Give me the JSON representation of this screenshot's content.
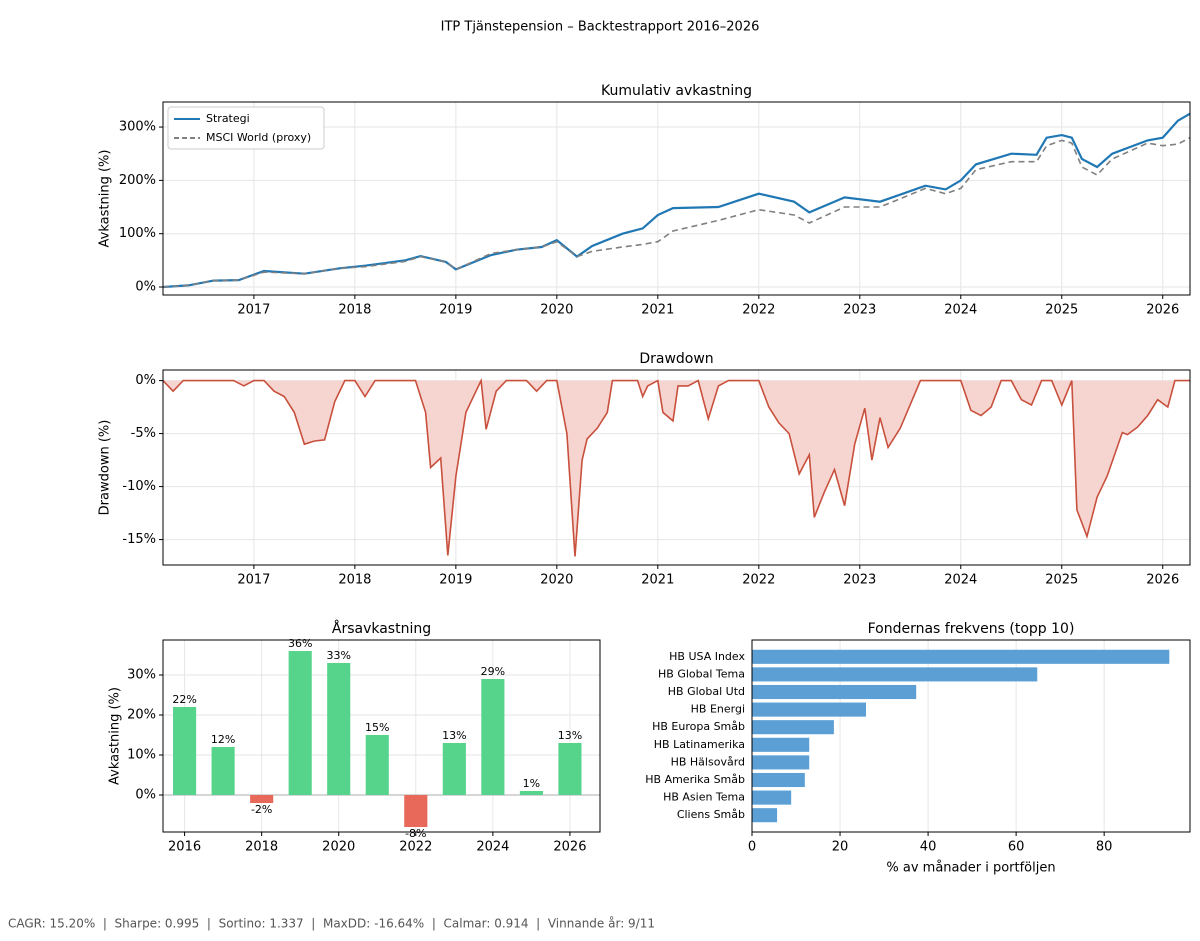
{
  "title": "ITP Tjänstepension – Backtestrapport 2016–2026",
  "footer": "CAGR: 15.20%  |  Sharpe: 0.995  |  Sortino: 1.337  |  MaxDD: -16.64%  |  Calmar: 0.914  |  Vinnande år: 9/11",
  "chart_data": [
    {
      "type": "line",
      "title": "Kumulativ avkastning",
      "y_label": "Avkastning (%)",
      "x": [
        2016.1,
        2016.35,
        2016.6,
        2016.85,
        2017.1,
        2017.5,
        2017.85,
        2018.1,
        2018.5,
        2018.65,
        2018.9,
        2019.0,
        2019.35,
        2019.6,
        2019.85,
        2020.0,
        2020.2,
        2020.35,
        2020.65,
        2020.85,
        2021.0,
        2021.15,
        2021.6,
        2022.0,
        2022.35,
        2022.5,
        2022.85,
        2023.2,
        2023.65,
        2023.85,
        2024.0,
        2024.15,
        2024.5,
        2024.75,
        2024.85,
        2025.0,
        2025.1,
        2025.2,
        2025.35,
        2025.5,
        2025.85,
        2026.0,
        2026.15,
        2026.27
      ],
      "series": [
        {
          "name": "Strategi",
          "color": "#1f77b4",
          "linestyle": "solid",
          "values": [
            0,
            3,
            12,
            13,
            30,
            25,
            35,
            40,
            50,
            58,
            47,
            33,
            60,
            70,
            75,
            88,
            57,
            77,
            100,
            110,
            135,
            148,
            150,
            175,
            160,
            140,
            168,
            160,
            190,
            183,
            200,
            230,
            250,
            248,
            280,
            285,
            280,
            240,
            225,
            250,
            275,
            280,
            312,
            325
          ]
        },
        {
          "name": "MSCI World (proxy)",
          "color": "#808080",
          "linestyle": "dashed",
          "values": [
            0,
            3,
            12,
            13,
            28,
            25,
            35,
            38,
            48,
            57,
            47,
            33,
            63,
            70,
            75,
            85,
            57,
            67,
            75,
            80,
            85,
            105,
            125,
            145,
            135,
            120,
            150,
            150,
            185,
            175,
            185,
            220,
            235,
            235,
            265,
            275,
            270,
            225,
            210,
            240,
            270,
            265,
            268,
            280
          ]
        }
      ],
      "xlim": [
        2016.1,
        2026.27
      ],
      "xticks": [
        2017,
        2018,
        2019,
        2020,
        2021,
        2022,
        2023,
        2024,
        2025,
        2026
      ],
      "ylim": [
        -15,
        347
      ],
      "yticks": [
        {
          "value": 0,
          "label": "0%"
        },
        {
          "value": 100,
          "label": "100%"
        },
        {
          "value": 200,
          "label": "200%"
        },
        {
          "value": 300,
          "label": "300%"
        }
      ],
      "grid": true,
      "legend": "upper left"
    },
    {
      "type": "area",
      "title": "Drawdown",
      "y_label": "Drawdown (%)",
      "x": [
        2016.1,
        2016.2,
        2016.3,
        2016.8,
        2016.9,
        2017.0,
        2017.1,
        2017.2,
        2017.3,
        2017.4,
        2017.5,
        2017.6,
        2017.7,
        2017.8,
        2017.9,
        2018.0,
        2018.1,
        2018.2,
        2018.6,
        2018.7,
        2018.75,
        2018.85,
        2018.92,
        2019.0,
        2019.1,
        2019.2,
        2019.25,
        2019.3,
        2019.4,
        2019.5,
        2019.7,
        2019.8,
        2019.9,
        2020.0,
        2020.1,
        2020.18,
        2020.25,
        2020.3,
        2020.4,
        2020.5,
        2020.55,
        2020.8,
        2020.85,
        2020.9,
        2021.0,
        2021.05,
        2021.15,
        2021.2,
        2021.3,
        2021.4,
        2021.5,
        2021.6,
        2021.7,
        2022.0,
        2022.1,
        2022.2,
        2022.3,
        2022.4,
        2022.5,
        2022.55,
        2022.65,
        2022.75,
        2022.85,
        2022.95,
        2023.05,
        2023.12,
        2023.2,
        2023.28,
        2023.4,
        2023.6,
        2024.0,
        2024.1,
        2024.2,
        2024.3,
        2024.4,
        2024.5,
        2024.6,
        2024.7,
        2024.8,
        2024.9,
        2025.0,
        2025.1,
        2025.15,
        2025.25,
        2025.35,
        2025.45,
        2025.6,
        2025.65,
        2025.75,
        2025.85,
        2025.95,
        2026.05,
        2026.12,
        2026.27
      ],
      "series": [
        {
          "name": "Drawdown",
          "color": "#c8503c",
          "fill": "#f6d5d1",
          "values": [
            0,
            -1,
            0,
            0,
            -0.5,
            0,
            0,
            -1,
            -1.5,
            -3,
            -6,
            -5.7,
            -5.6,
            -2,
            0,
            0,
            -1.5,
            0,
            0,
            -3,
            -8.2,
            -7.3,
            -16.5,
            -9,
            -3,
            -1,
            0,
            -4.6,
            -1,
            0,
            0,
            -1,
            0,
            0,
            -5,
            -16.6,
            -7.5,
            -5.5,
            -4.5,
            -3,
            0,
            0,
            -1.5,
            -0.5,
            0,
            -3,
            -3.8,
            -0.5,
            -0.5,
            0,
            -3.6,
            -0.5,
            0,
            0,
            -2.5,
            -4,
            -5,
            -8.8,
            -7,
            -12.9,
            -10.5,
            -8.4,
            -11.8,
            -6,
            -2.6,
            -7.5,
            -3.5,
            -6.3,
            -4.5,
            0,
            0,
            -2.8,
            -3.3,
            -2.5,
            0,
            0,
            -1.8,
            -2.3,
            0,
            0,
            -2.3,
            0,
            -12.2,
            -14.7,
            -11,
            -9,
            -4.9,
            -5.1,
            -4.4,
            -3.3,
            -1.8,
            -2.5,
            0,
            0
          ]
        }
      ],
      "xlim": [
        2016.1,
        2026.27
      ],
      "xticks": [
        2017,
        2018,
        2019,
        2020,
        2021,
        2022,
        2023,
        2024,
        2025,
        2026
      ],
      "ylim": [
        -17.4,
        1.0
      ],
      "yticks": [
        {
          "value": -15,
          "label": "-15%"
        },
        {
          "value": -10,
          "label": "-10%"
        },
        {
          "value": -5,
          "label": "-5%"
        },
        {
          "value": 0,
          "label": "0%"
        }
      ],
      "grid": true
    },
    {
      "type": "bar",
      "title": "Årsavkastning",
      "y_label": "Avkastning (%)",
      "x": [
        2016,
        2017,
        2018,
        2019,
        2020,
        2021,
        2022,
        2023,
        2024,
        2025,
        2026
      ],
      "values": [
        22,
        12,
        -2,
        36,
        33,
        15,
        -8,
        13,
        29,
        1,
        13
      ],
      "value_labels": [
        "22%",
        "12%",
        "-2%",
        "36%",
        "33%",
        "15%",
        "-8%",
        "13%",
        "29%",
        "1%",
        "13%"
      ],
      "positive_color": "#57d48c",
      "negative_color": "#e8695a",
      "xlim": [
        2015.44,
        2026.78
      ],
      "xticks": [
        2016,
        2018,
        2020,
        2022,
        2024,
        2026
      ],
      "ylim": [
        -9.25,
        38.75
      ],
      "yticks": [
        {
          "value": 0,
          "label": "0%"
        },
        {
          "value": 10,
          "label": "10%"
        },
        {
          "value": 20,
          "label": "20%"
        },
        {
          "value": 30,
          "label": "30%"
        }
      ],
      "grid": true
    },
    {
      "type": "barh",
      "title": "Fondernas frekvens (topp 10)",
      "x_label": "% av månader i portföljen",
      "categories": [
        "HB USA Index",
        "HB Global Tema",
        "HB Global Utd",
        "HB Energi",
        "HB Europa Småb",
        "HB Latinamerika",
        "HB Hälsovård",
        "HB Amerika Småb",
        "HB Asien Tema",
        "Cliens Småb"
      ],
      "values": [
        94.8,
        64.8,
        37.3,
        25.9,
        18.6,
        13,
        13,
        12,
        8.9,
        5.7
      ],
      "color": "#5b9fd4",
      "xlim": [
        0,
        99.5
      ],
      "xticks": [
        0,
        20,
        40,
        60,
        80
      ],
      "grid": true
    }
  ]
}
